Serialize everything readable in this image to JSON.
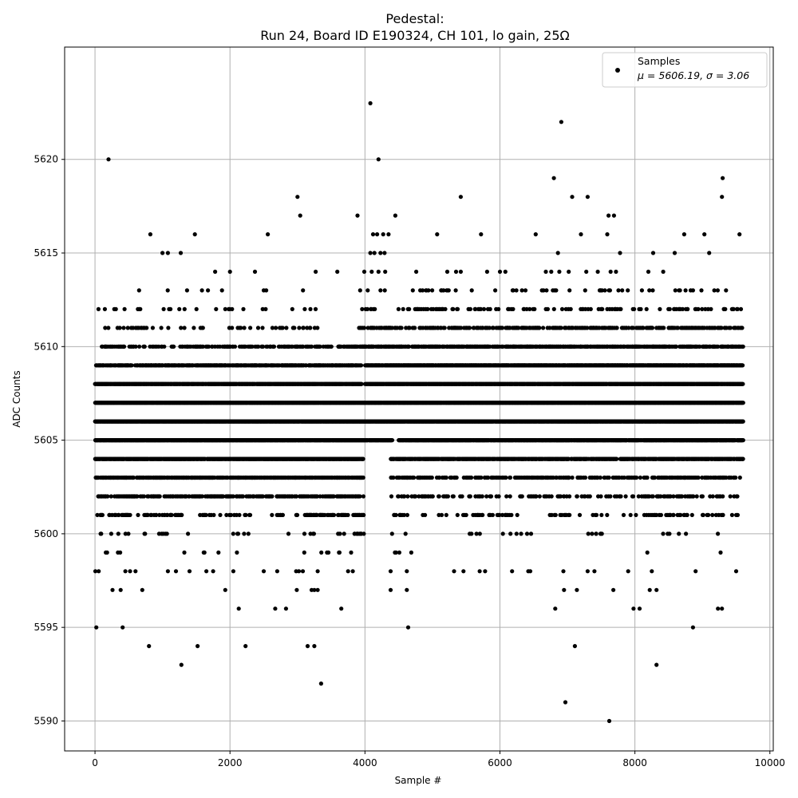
{
  "chart_data": {
    "type": "scatter",
    "title_line1": "Pedestal:",
    "title_line2": "Run 24, Board ID E190324, CH 101, lo gain, 25Ω",
    "xlabel": "Sample #",
    "ylabel": "ADC Counts",
    "xlim": [
      -450,
      10050
    ],
    "ylim": [
      5588.4,
      5626.0
    ],
    "xticks": [
      0,
      2000,
      4000,
      6000,
      8000,
      10000
    ],
    "yticks": [
      5590,
      5595,
      5600,
      5605,
      5610,
      5615,
      5620
    ],
    "grid": true,
    "legend": {
      "placement": "top-right",
      "label_line1": "Samples",
      "label_line2": "μ = 5606.19, σ = 3.06"
    },
    "marker_color": "#000000",
    "series": [
      {
        "name": "Samples",
        "mean": 5606.19,
        "sigma": 3.06,
        "n_samples": 9600,
        "levels": [
          {
            "y": 5598,
            "x": [
              5,
              55,
              450,
              520,
              600,
              1080,
              1200,
              1400,
              1650,
              1750,
              2050,
              2500,
              2700,
              2980,
              3020,
              3080,
              3300,
              3750,
              3820,
              4380,
              4620,
              5320,
              5460,
              5700,
              5780,
              6180,
              6420,
              6450,
              6940,
              7300,
              7400,
              7900,
              8250,
              8900,
              9500
            ]
          },
          {
            "y": 5597,
            "x": [
              260,
              380,
              700,
              1930,
              2990,
              3210,
              3250,
              3300,
              4380,
              4620,
              6950,
              7140,
              7680,
              8220,
              8320
            ]
          },
          {
            "y": 5596,
            "x": [
              2130,
              2670,
              2830,
              3650,
              6820,
              7980,
              8070,
              9230,
              9290
            ]
          },
          {
            "y": 5595,
            "x": [
              20,
              410,
              4640,
              8860
            ]
          },
          {
            "y": 5594,
            "x": [
              800,
              1520,
              2230,
              3150,
              3250,
              7110
            ]
          },
          {
            "y": 5593,
            "x": [
              1280,
              8320
            ]
          },
          {
            "y": 5592,
            "x": [
              3350
            ]
          },
          {
            "y": 5591,
            "x": [
              6970
            ]
          },
          {
            "y": 5590,
            "x": [
              7620
            ]
          },
          {
            "y": 5614,
            "x": [
              1780,
              2000,
              2370,
              3270,
              3590,
              3990,
              4100,
              4200,
              4300,
              4760,
              5220,
              5350,
              5420,
              5810,
              6000,
              6080,
              6680,
              6760,
              6880,
              7020,
              7280,
              7450,
              7640,
              7720,
              8200,
              8420
            ]
          },
          {
            "y": 5615,
            "x": [
              1000,
              1080,
              1270,
              4080,
              4140,
              4230,
              4290,
              6860,
              7780,
              8270,
              8590,
              9100
            ]
          },
          {
            "y": 5616,
            "x": [
              820,
              1480,
              2560,
              4120,
              4180,
              4270,
              4350,
              5070,
              5720,
              6530,
              7200,
              7590,
              8730,
              9030,
              9550
            ]
          },
          {
            "y": 5617,
            "x": [
              3040,
              3890,
              4450,
              7610,
              7690
            ]
          },
          {
            "y": 5618,
            "x": [
              3000,
              5420,
              7070,
              7300,
              9290
            ]
          },
          {
            "y": 5619,
            "x": [
              6800,
              9300
            ]
          },
          {
            "y": 5620,
            "x": [
              200,
              4200
            ]
          },
          {
            "y": 5622,
            "x": [
              6910
            ]
          },
          {
            "y": 5623,
            "x": [
              4080
            ]
          }
        ],
        "bulk": [
          {
            "y": 5599,
            "segments": [
              [
                60,
                380,
                0.07
              ],
              [
                1300,
                2150,
                0.03
              ],
              [
                3100,
                3950,
                0.05
              ],
              [
                4350,
                4700,
                0.04
              ],
              [
                6700,
                7000,
                0.02
              ],
              [
                7500,
                8300,
                0.02
              ],
              [
                9200,
                9300,
                0.05
              ]
            ]
          },
          {
            "y": 5600,
            "segments": [
              [
                5,
                620,
                0.12
              ],
              [
                720,
                1170,
                0.07
              ],
              [
                1300,
                2350,
                0.04
              ],
              [
                2800,
                3300,
                0.05
              ],
              [
                3600,
                3980,
                0.14
              ],
              [
                4380,
                4720,
                0.08
              ],
              [
                5500,
                6600,
                0.05
              ],
              [
                7150,
                7650,
                0.06
              ],
              [
                8400,
                8800,
                0.05
              ],
              [
                9200,
                9300,
                0.07
              ]
            ]
          },
          {
            "y": 5601,
            "segments": [
              [
                0,
                1300,
                0.25
              ],
              [
                1550,
                2300,
                0.22
              ],
              [
                2600,
                3000,
                0.12
              ],
              [
                3100,
                3980,
                0.35
              ],
              [
                4350,
                4650,
                0.15
              ],
              [
                4750,
                6400,
                0.1
              ],
              [
                6700,
                9550,
                0.12
              ]
            ]
          },
          {
            "y": 5602,
            "segments": [
              [
                0,
                3980,
                0.35
              ],
              [
                4380,
                9550,
                0.2
              ]
            ]
          },
          {
            "y": 5603,
            "segments": [
              [
                0,
                3980,
                0.55
              ],
              [
                4380,
                9580,
                0.3
              ]
            ]
          },
          {
            "y": 5604,
            "segments": [
              [
                0,
                3980,
                0.85
              ],
              [
                4380,
                9600,
                0.65
              ]
            ]
          },
          {
            "y": 5605,
            "segments": [
              [
                0,
                4400,
                0.95
              ],
              [
                4500,
                9600,
                0.85
              ]
            ]
          },
          {
            "y": 5606,
            "segments": [
              [
                0,
                9600,
                0.98
              ]
            ]
          },
          {
            "y": 5607,
            "segments": [
              [
                0,
                9600,
                0.98
              ]
            ]
          },
          {
            "y": 5608,
            "segments": [
              [
                0,
                3950,
                0.9
              ],
              [
                4000,
                9600,
                0.95
              ]
            ]
          },
          {
            "y": 5609,
            "segments": [
              [
                0,
                3950,
                0.55
              ],
              [
                4000,
                9600,
                0.85
              ]
            ]
          },
          {
            "y": 5610,
            "segments": [
              [
                80,
                3500,
                0.3
              ],
              [
                3600,
                9600,
                0.55
              ]
            ]
          },
          {
            "y": 5611,
            "segments": [
              [
                60,
                3300,
                0.1
              ],
              [
                3900,
                9600,
                0.3
              ]
            ]
          },
          {
            "y": 5612,
            "segments": [
              [
                50,
                3400,
                0.05
              ],
              [
                3950,
                9600,
                0.12
              ]
            ]
          },
          {
            "y": 5613,
            "segments": [
              [
                380,
                3300,
                0.02
              ],
              [
                3900,
                9600,
                0.05
              ]
            ]
          }
        ]
      }
    ]
  }
}
